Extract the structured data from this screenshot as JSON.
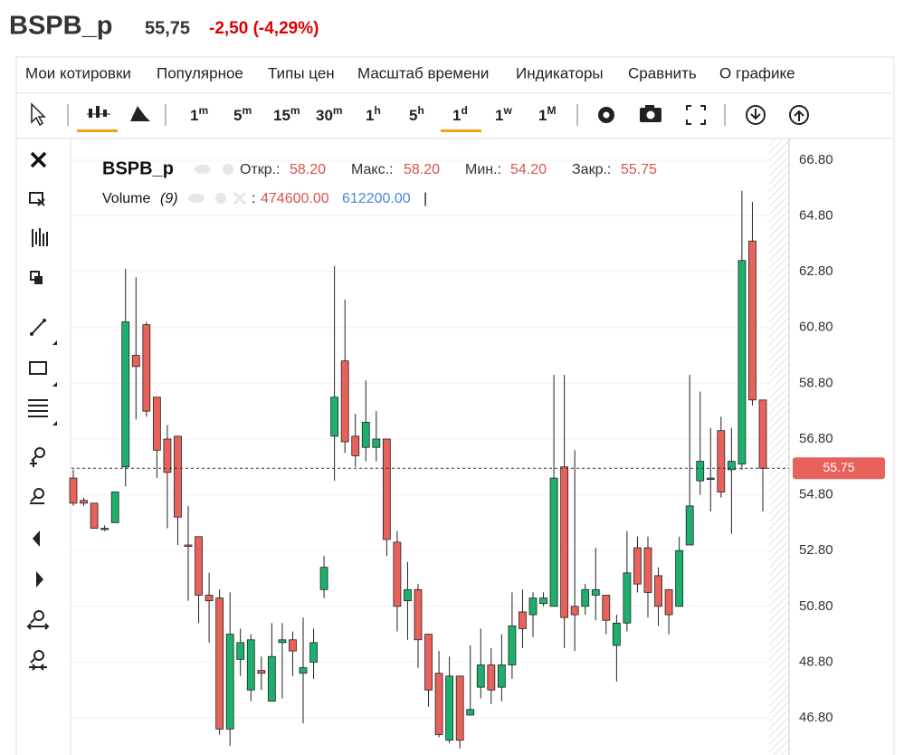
{
  "header": {
    "ticker": "BSPB_p",
    "price": "55,75",
    "change": "-2,50 (-4,29%)"
  },
  "menu": [
    "Мои котировки",
    "Популярное",
    "Типы цен",
    "Масштаб времени",
    "Индикаторы",
    "Сравнить",
    "О графике"
  ],
  "timeframes": [
    {
      "num": "1",
      "unit": "m"
    },
    {
      "num": "5",
      "unit": "m"
    },
    {
      "num": "15",
      "unit": "m"
    },
    {
      "num": "30",
      "unit": "m"
    },
    {
      "num": "1",
      "unit": "h"
    },
    {
      "num": "5",
      "unit": "h"
    },
    {
      "num": "1",
      "unit": "d"
    },
    {
      "num": "1",
      "unit": "w"
    },
    {
      "num": "1",
      "unit": "M"
    }
  ],
  "legend": {
    "symbol": "BSPB_p",
    "open_label": "Откр.:",
    "open": "58.20",
    "high_label": "Макс.:",
    "high": "58.20",
    "low_label": "Мин.:",
    "low": "54.20",
    "close_label": "Закр.:",
    "close": "55.75",
    "volume_label": "Volume",
    "volume_param": "(9)",
    "colon": ":",
    "volume_1": "474600.00",
    "volume_2": "612200.00",
    "cursor": "|"
  },
  "chart_data": {
    "type": "candlestick",
    "open": [
      55.4,
      54.6,
      54.5,
      53.6,
      53.8,
      55.8,
      59.8,
      60.9,
      58.3,
      56.8,
      56.9,
      53.0,
      53.3,
      51.2,
      51.1,
      46.4,
      48.9,
      47.8,
      48.5,
      47.4,
      49.5,
      49.6,
      48.4,
      48.8,
      51.4,
      56.9,
      59.6,
      56.9,
      56.5,
      56.5,
      56.8,
      53.1,
      51.0,
      51.4,
      49.8,
      48.4,
      46.0,
      48.3,
      46.9,
      47.9,
      48.7,
      47.9,
      48.7,
      50.6,
      50.5,
      50.9,
      50.8,
      55.8,
      50.8,
      50.8,
      51.2,
      51.2,
      49.4,
      50.2,
      52.9,
      52.9,
      51.9,
      51.4,
      50.8,
      53.0,
      55.3,
      55.4,
      57.1,
      55.7,
      55.9,
      63.9,
      58.2
    ],
    "high": [
      55.7,
      54.7,
      54.5,
      53.7,
      54.9,
      62.9,
      62.6,
      61.0,
      58.3,
      57.3,
      56.9,
      54.4,
      53.3,
      52.0,
      51.4,
      51.3,
      50.0,
      49.8,
      49.0,
      50.2,
      50.2,
      49.9,
      50.4,
      50.0,
      52.6,
      63.0,
      61.8,
      57.7,
      58.9,
      57.8,
      56.8,
      53.5,
      52.4,
      51.6,
      49.8,
      49.2,
      49.0,
      48.3,
      49.4,
      50.0,
      49.3,
      49.8,
      51.3,
      51.4,
      51.3,
      51.3,
      59.1,
      59.1,
      56.4,
      51.6,
      52.9,
      51.2,
      50.5,
      53.5,
      53.3,
      53.3,
      52.2,
      51.4,
      53.3,
      59.1,
      58.5,
      57.2,
      57.6,
      57.2,
      65.7,
      65.3,
      58.2
    ],
    "low": [
      54.4,
      54.4,
      53.6,
      53.5,
      53.8,
      55.1,
      57.5,
      57.6,
      55.4,
      53.6,
      53.0,
      51.0,
      50.2,
      49.5,
      46.2,
      45.8,
      48.3,
      47.4,
      47.8,
      47.4,
      47.5,
      48.3,
      46.6,
      48.2,
      51.1,
      55.3,
      56.3,
      55.8,
      56.0,
      56.0,
      52.6,
      49.9,
      49.6,
      48.6,
      47.2,
      46.1,
      45.9,
      45.7,
      46.9,
      47.5,
      47.3,
      47.4,
      48.2,
      49.3,
      49.7,
      50.8,
      50.8,
      49.3,
      49.2,
      50.5,
      50.3,
      49.8,
      48.1,
      49.9,
      51.3,
      50.4,
      50.1,
      49.8,
      50.8,
      53.0,
      54.8,
      54.2,
      54.7,
      53.4,
      55.7,
      58.0,
      54.2
    ],
    "close": [
      54.5,
      54.5,
      53.6,
      53.6,
      54.9,
      61.0,
      59.4,
      57.8,
      56.4,
      55.6,
      54.0,
      52.95,
      51.2,
      51.0,
      46.4,
      49.8,
      49.5,
      49.6,
      48.4,
      49.0,
      49.6,
      49.2,
      48.6,
      49.5,
      52.2,
      58.3,
      56.7,
      56.2,
      57.4,
      56.8,
      53.2,
      50.8,
      51.4,
      49.6,
      47.8,
      46.2,
      48.3,
      46.0,
      47.1,
      48.7,
      47.8,
      48.7,
      50.1,
      50.0,
      51.1,
      51.1,
      55.4,
      50.4,
      50.5,
      51.4,
      51.4,
      50.3,
      50.2,
      52.0,
      51.6,
      51.3,
      50.8,
      50.5,
      52.8,
      54.4,
      56.0,
      55.4,
      54.9,
      56.0,
      63.2,
      58.2,
      55.75
    ],
    "up_color": "#1db06d",
    "down_color": "#e8625b",
    "ylim": [
      45.47,
      67.51
    ],
    "yticks": [
      {
        "value": 46.8,
        "label": "46.80"
      },
      {
        "value": 48.8,
        "label": "48.80"
      },
      {
        "value": 50.8,
        "label": "50.80"
      },
      {
        "value": 52.8,
        "label": "52.80"
      },
      {
        "value": 54.8,
        "label": "54.80"
      },
      {
        "value": 56.8,
        "label": "56.80"
      },
      {
        "value": 58.8,
        "label": "58.80"
      },
      {
        "value": 60.8,
        "label": "60.80"
      },
      {
        "value": 62.8,
        "label": "62.80"
      },
      {
        "value": 64.8,
        "label": "64.80"
      },
      {
        "value": 66.8,
        "label": "66.80"
      }
    ],
    "grid": true,
    "last_price": {
      "value": 55.75,
      "label": "55.75"
    }
  }
}
